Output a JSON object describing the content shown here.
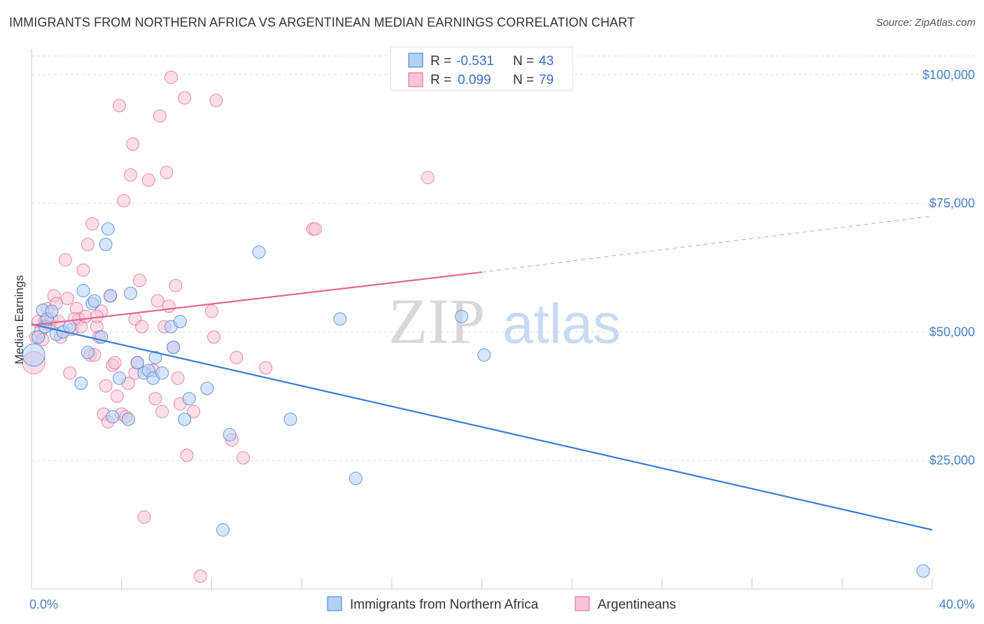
{
  "title": "IMMIGRANTS FROM NORTHERN AFRICA VS ARGENTINEAN MEDIAN EARNINGS CORRELATION CHART",
  "source": "Source: ZipAtlas.com",
  "watermark": {
    "zip": "ZIP",
    "atlas": "atlas"
  },
  "colors": {
    "blue": "#3a7bd5",
    "blue_fill": "#b3d0f5",
    "pink": "#e36591",
    "pink_fill": "#f7c3d6",
    "grid": "#dddddd",
    "tick_text": "#4a7fc8"
  },
  "legend_box": {
    "rows": [
      {
        "r_label": "R =",
        "r_value": "-0.531",
        "n_label": "N =",
        "n_value": "43",
        "color": "blue"
      },
      {
        "r_label": "R =",
        "r_value": "0.099",
        "n_label": "N =",
        "n_value": "79",
        "color": "pink"
      }
    ]
  },
  "chart_data": {
    "type": "scatter",
    "ylabel": "Median Earnings",
    "xlim": [
      0,
      40
    ],
    "ylim": [
      0,
      105000
    ],
    "x_tick_labels": [
      {
        "value": 0,
        "label": "0.0%"
      },
      {
        "value": 40,
        "label": "40.0%"
      }
    ],
    "y_tick_labels": [
      {
        "value": 25000,
        "label": "$25,000"
      },
      {
        "value": 50000,
        "label": "$50,000"
      },
      {
        "value": 75000,
        "label": "$75,000"
      },
      {
        "value": 100000,
        "label": "$100,000"
      }
    ],
    "legend_placement": "top-center",
    "grid": true,
    "series": [
      {
        "name": "Immigrants from Northern Africa",
        "color": "blue",
        "points": [
          [
            0.1,
            45500
          ],
          [
            0.3,
            49000
          ],
          [
            0.5,
            54200
          ],
          [
            0.6,
            51000
          ],
          [
            0.7,
            52500
          ],
          [
            1.1,
            49500
          ],
          [
            1.4,
            50000
          ],
          [
            1.7,
            51000
          ],
          [
            2.2,
            40000
          ],
          [
            2.3,
            58000
          ],
          [
            2.5,
            46000
          ],
          [
            2.7,
            55500
          ],
          [
            2.8,
            56000
          ],
          [
            3.1,
            49000
          ],
          [
            3.3,
            67000
          ],
          [
            3.4,
            70000
          ],
          [
            3.5,
            57000
          ],
          [
            3.6,
            33500
          ],
          [
            3.9,
            41000
          ],
          [
            4.3,
            33000
          ],
          [
            4.4,
            57500
          ],
          [
            4.7,
            44000
          ],
          [
            5.0,
            42000
          ],
          [
            5.2,
            42500
          ],
          [
            5.4,
            41000
          ],
          [
            5.5,
            45000
          ],
          [
            5.8,
            42000
          ],
          [
            6.2,
            51000
          ],
          [
            6.3,
            47000
          ],
          [
            6.6,
            52000
          ],
          [
            6.8,
            33000
          ],
          [
            7.0,
            37000
          ],
          [
            7.8,
            39000
          ],
          [
            8.5,
            11500
          ],
          [
            8.8,
            30000
          ],
          [
            10.1,
            65500
          ],
          [
            11.5,
            33000
          ],
          [
            13.7,
            52500
          ],
          [
            14.4,
            21500
          ],
          [
            19.1,
            53000
          ],
          [
            20.1,
            45500
          ],
          [
            39.6,
            3500
          ],
          [
            0.9,
            54000
          ]
        ]
      },
      {
        "name": "Argentineans",
        "color": "pink",
        "points": [
          [
            0.1,
            44000
          ],
          [
            0.2,
            49000
          ],
          [
            0.3,
            52000
          ],
          [
            0.4,
            50000
          ],
          [
            0.5,
            48500
          ],
          [
            0.6,
            52000
          ],
          [
            0.7,
            54500
          ],
          [
            0.8,
            51500
          ],
          [
            0.9,
            52500
          ],
          [
            1.0,
            57000
          ],
          [
            1.1,
            55500
          ],
          [
            1.2,
            52000
          ],
          [
            1.3,
            49000
          ],
          [
            1.5,
            64000
          ],
          [
            1.6,
            56500
          ],
          [
            1.7,
            42000
          ],
          [
            1.8,
            50500
          ],
          [
            2.0,
            54500
          ],
          [
            2.1,
            52500
          ],
          [
            2.2,
            51000
          ],
          [
            2.3,
            62000
          ],
          [
            2.4,
            53000
          ],
          [
            2.5,
            67000
          ],
          [
            2.6,
            45500
          ],
          [
            2.7,
            71000
          ],
          [
            2.8,
            45500
          ],
          [
            2.9,
            51000
          ],
          [
            3.0,
            49000
          ],
          [
            3.1,
            54000
          ],
          [
            3.2,
            34000
          ],
          [
            3.3,
            39500
          ],
          [
            3.4,
            32500
          ],
          [
            3.5,
            57000
          ],
          [
            3.6,
            43500
          ],
          [
            3.7,
            44000
          ],
          [
            3.8,
            37500
          ],
          [
            3.9,
            94000
          ],
          [
            4.0,
            34000
          ],
          [
            4.1,
            75500
          ],
          [
            4.2,
            33500
          ],
          [
            4.3,
            40000
          ],
          [
            4.4,
            80500
          ],
          [
            4.5,
            86500
          ],
          [
            4.6,
            52500
          ],
          [
            4.7,
            44000
          ],
          [
            4.8,
            60000
          ],
          [
            4.9,
            51000
          ],
          [
            5.0,
            14000
          ],
          [
            5.2,
            79500
          ],
          [
            5.4,
            42500
          ],
          [
            5.5,
            37000
          ],
          [
            5.6,
            56000
          ],
          [
            5.7,
            92000
          ],
          [
            5.8,
            34500
          ],
          [
            5.9,
            51000
          ],
          [
            6.0,
            81000
          ],
          [
            6.1,
            55000
          ],
          [
            6.2,
            99500
          ],
          [
            6.3,
            47000
          ],
          [
            6.4,
            59000
          ],
          [
            6.5,
            41000
          ],
          [
            6.6,
            36000
          ],
          [
            6.8,
            95500
          ],
          [
            6.9,
            26000
          ],
          [
            7.2,
            34500
          ],
          [
            7.5,
            2500
          ],
          [
            8.0,
            54000
          ],
          [
            8.1,
            49000
          ],
          [
            8.2,
            95000
          ],
          [
            8.9,
            29000
          ],
          [
            9.1,
            45000
          ],
          [
            9.4,
            25500
          ],
          [
            10.4,
            43000
          ],
          [
            12.5,
            70000
          ],
          [
            12.6,
            70000
          ],
          [
            17.6,
            80000
          ],
          [
            1.9,
            52500
          ],
          [
            2.9,
            53000
          ],
          [
            4.6,
            42000
          ]
        ]
      }
    ],
    "trend_lines": [
      {
        "series": "Immigrants from Northern Africa",
        "color": "blue",
        "x_start": 0,
        "y_start": 51500,
        "x_end": 40,
        "y_end": 11500,
        "dashed_after": null
      },
      {
        "series": "Argentineans",
        "color": "pink",
        "x_start": 0,
        "y_start": 51300,
        "x_end": 20,
        "y_end": 61600,
        "dashed_to_x": 40,
        "dashed_to_y": 72500
      }
    ]
  }
}
